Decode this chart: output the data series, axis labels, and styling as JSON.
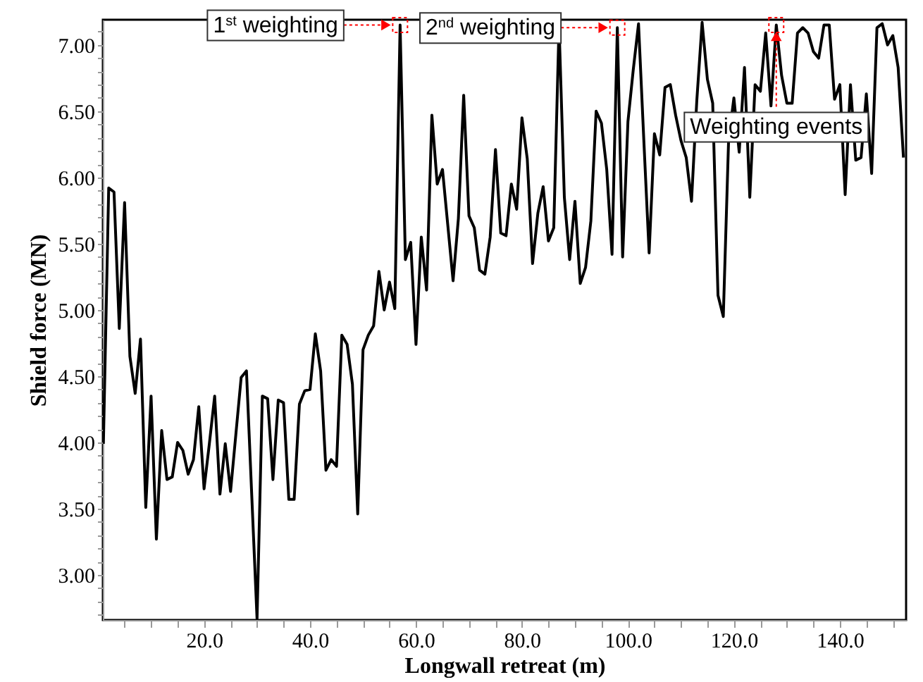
{
  "chart_data": {
    "type": "line",
    "xlabel": "Longwall retreat (m)",
    "ylabel": "Shield force (MN)",
    "color": "#000000",
    "grid": false,
    "marker": "none",
    "line_style": "solid",
    "x": [
      1,
      2,
      3,
      4,
      5,
      6,
      7,
      8,
      9,
      10,
      11,
      12,
      13,
      14,
      15,
      16,
      17,
      18,
      19,
      20,
      21,
      22,
      23,
      24,
      25,
      26,
      27,
      28,
      29,
      30,
      31,
      32,
      33,
      34,
      35,
      36,
      37,
      38,
      39,
      40,
      41,
      42,
      43,
      44,
      45,
      46,
      47,
      48,
      49,
      50,
      51,
      52,
      53,
      54,
      55,
      56,
      57,
      58,
      59,
      60,
      61,
      62,
      63,
      64,
      65,
      66,
      67,
      68,
      69,
      70,
      71,
      72,
      73,
      74,
      75,
      76,
      77,
      78,
      79,
      80,
      81,
      82,
      83,
      84,
      85,
      86,
      87,
      88,
      89,
      90,
      91,
      92,
      93,
      94,
      95,
      96,
      97,
      98,
      99,
      100,
      101,
      102,
      103,
      104,
      105,
      106,
      107,
      108,
      109,
      110,
      111,
      112,
      113,
      114,
      115,
      116,
      117,
      118,
      119,
      120,
      121,
      122,
      123,
      124,
      125,
      126,
      127,
      128,
      129,
      130,
      131,
      132,
      133,
      134,
      135,
      136,
      137,
      138,
      139,
      140,
      141,
      142,
      143,
      144,
      145,
      146,
      147,
      148,
      149,
      150,
      151,
      152
    ],
    "values": [
      3.99,
      5.92,
      5.89,
      4.86,
      5.81,
      4.65,
      4.37,
      4.78,
      3.51,
      4.35,
      3.27,
      4.09,
      3.72,
      3.74,
      4.0,
      3.94,
      3.76,
      3.87,
      4.27,
      3.65,
      3.99,
      4.35,
      3.61,
      3.99,
      3.63,
      4.06,
      4.49,
      4.54,
      3.6,
      2.67,
      4.35,
      4.33,
      3.72,
      4.32,
      4.3,
      3.57,
      3.57,
      4.29,
      4.39,
      4.4,
      4.82,
      4.54,
      3.79,
      3.87,
      3.82,
      4.81,
      4.74,
      4.44,
      3.46,
      4.7,
      4.81,
      4.88,
      5.29,
      5.0,
      5.21,
      5.01,
      7.15,
      5.38,
      5.51,
      4.74,
      5.55,
      5.15,
      6.47,
      5.95,
      6.06,
      5.64,
      5.22,
      5.69,
      6.62,
      5.71,
      5.62,
      5.3,
      5.27,
      5.55,
      6.21,
      5.58,
      5.56,
      5.95,
      5.76,
      6.45,
      6.14,
      5.35,
      5.73,
      5.93,
      5.52,
      5.62,
      7.15,
      5.85,
      5.38,
      5.82,
      5.2,
      5.32,
      5.67,
      6.5,
      6.41,
      6.06,
      5.42,
      7.13,
      5.4,
      6.42,
      6.81,
      7.16,
      6.28,
      5.43,
      6.33,
      6.17,
      6.68,
      6.7,
      6.47,
      6.28,
      6.15,
      5.82,
      6.58,
      7.17,
      6.74,
      6.56,
      5.11,
      4.95,
      6.28,
      6.6,
      6.19,
      6.83,
      5.85,
      6.7,
      6.65,
      7.09,
      6.54,
      7.15,
      6.77,
      6.56,
      6.56,
      7.09,
      7.13,
      7.09,
      6.95,
      6.9,
      7.15,
      7.15,
      6.59,
      6.7,
      5.87,
      6.7,
      6.13,
      6.15,
      6.63,
      6.03,
      7.13,
      7.16,
      7.0,
      7.07,
      6.83,
      6.15
    ],
    "xlim": [
      0.9,
      152.5
    ],
    "ylim": [
      2.66,
      7.19
    ],
    "xticks": [
      {
        "value": 5,
        "label": null
      },
      {
        "value": 10,
        "label": null
      },
      {
        "value": 15,
        "label": null
      },
      {
        "value": 20,
        "label": "20.0"
      },
      {
        "value": 25,
        "label": null
      },
      {
        "value": 30,
        "label": null
      },
      {
        "value": 35,
        "label": null
      },
      {
        "value": 40,
        "label": "40.0"
      },
      {
        "value": 45,
        "label": null
      },
      {
        "value": 50,
        "label": null
      },
      {
        "value": 55,
        "label": null
      },
      {
        "value": 60,
        "label": "60.0"
      },
      {
        "value": 65,
        "label": null
      },
      {
        "value": 70,
        "label": null
      },
      {
        "value": 75,
        "label": null
      },
      {
        "value": 80,
        "label": "80.0"
      },
      {
        "value": 85,
        "label": null
      },
      {
        "value": 90,
        "label": null
      },
      {
        "value": 95,
        "label": null
      },
      {
        "value": 100,
        "label": "100.0"
      },
      {
        "value": 105,
        "label": null
      },
      {
        "value": 110,
        "label": null
      },
      {
        "value": 115,
        "label": null
      },
      {
        "value": 120,
        "label": "120.0"
      },
      {
        "value": 125,
        "label": null
      },
      {
        "value": 130,
        "label": null
      },
      {
        "value": 135,
        "label": null
      },
      {
        "value": 140,
        "label": "140.0"
      },
      {
        "value": 145,
        "label": null
      },
      {
        "value": 150,
        "label": null
      }
    ],
    "yticks": [
      {
        "value": 2.7,
        "label": null
      },
      {
        "value": 2.8,
        "label": null
      },
      {
        "value": 2.9,
        "label": null
      },
      {
        "value": 3,
        "label": "3.00"
      },
      {
        "value": 3.1,
        "label": null
      },
      {
        "value": 3.2,
        "label": null
      },
      {
        "value": 3.3,
        "label": null
      },
      {
        "value": 3.4,
        "label": null
      },
      {
        "value": 3.5,
        "label": "3.50"
      },
      {
        "value": 3.6,
        "label": null
      },
      {
        "value": 3.7,
        "label": null
      },
      {
        "value": 3.8,
        "label": null
      },
      {
        "value": 3.9,
        "label": null
      },
      {
        "value": 4,
        "label": "4.00"
      },
      {
        "value": 4.1,
        "label": null
      },
      {
        "value": 4.2,
        "label": null
      },
      {
        "value": 4.3,
        "label": null
      },
      {
        "value": 4.4,
        "label": null
      },
      {
        "value": 4.5,
        "label": "4.50"
      },
      {
        "value": 4.6,
        "label": null
      },
      {
        "value": 4.7,
        "label": null
      },
      {
        "value": 4.8,
        "label": null
      },
      {
        "value": 4.9,
        "label": null
      },
      {
        "value": 5,
        "label": "5.00"
      },
      {
        "value": 5.1,
        "label": null
      },
      {
        "value": 5.2,
        "label": null
      },
      {
        "value": 5.3,
        "label": null
      },
      {
        "value": 5.4,
        "label": null
      },
      {
        "value": 5.5,
        "label": "5.50"
      },
      {
        "value": 5.6,
        "label": null
      },
      {
        "value": 5.7,
        "label": null
      },
      {
        "value": 5.8,
        "label": null
      },
      {
        "value": 5.9,
        "label": null
      },
      {
        "value": 6,
        "label": "6.00"
      },
      {
        "value": 6.1,
        "label": null
      },
      {
        "value": 6.2,
        "label": null
      },
      {
        "value": 6.3,
        "label": null
      },
      {
        "value": 6.4,
        "label": null
      },
      {
        "value": 6.5,
        "label": "6.50"
      },
      {
        "value": 6.6,
        "label": null
      },
      {
        "value": 6.7,
        "label": null
      },
      {
        "value": 6.8,
        "label": null
      },
      {
        "value": 6.9,
        "label": null
      },
      {
        "value": 7,
        "label": "7.00"
      },
      {
        "value": 7.1,
        "label": null
      }
    ],
    "annotations": [
      {
        "text": "1$^{st}$ weighting",
        "x": 57,
        "y": 7.15
      },
      {
        "text": "2$^{nd}$ weighting",
        "x": 98,
        "y": 7.13
      },
      {
        "text": "Weighting events",
        "x": 128,
        "y": 7.15
      }
    ]
  }
}
